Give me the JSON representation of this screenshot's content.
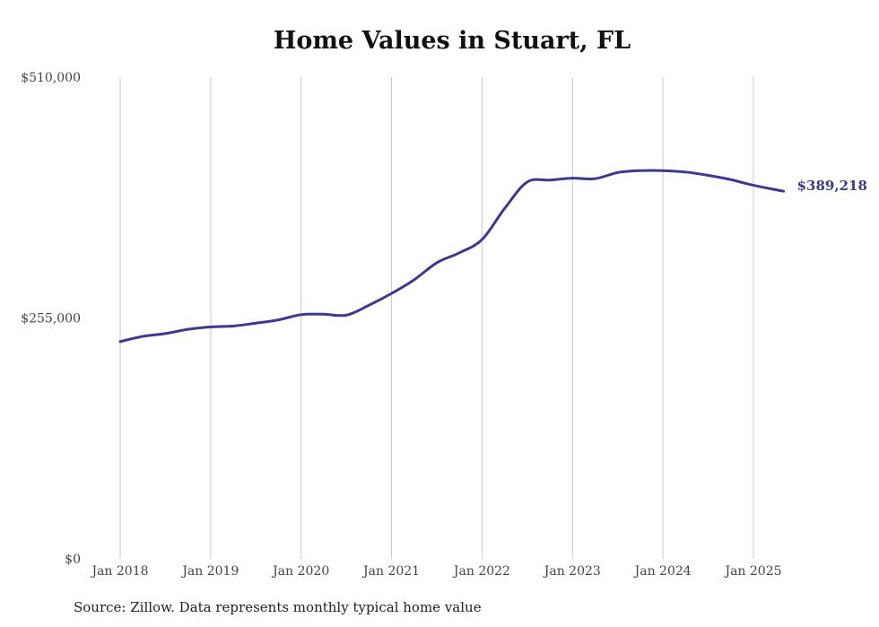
{
  "chart_data": {
    "type": "line",
    "title": "Home Values in Stuart, FL",
    "xlabel": "",
    "ylabel": "",
    "x_tick_labels": [
      "Jan 2018",
      "Jan 2019",
      "Jan 2020",
      "Jan 2021",
      "Jan 2022",
      "Jan 2023",
      "Jan 2024",
      "Jan 2025"
    ],
    "y_tick_labels": [
      "$0",
      "$255,000",
      "$510,000"
    ],
    "ylim": [
      0,
      510000
    ],
    "xlim": [
      "2018-01",
      "2025-05"
    ],
    "grid": "vertical",
    "color": "#3b3a8f",
    "series": [
      {
        "x": [
          "2018-01",
          "2018-04",
          "2018-07",
          "2018-10",
          "2019-01",
          "2019-04",
          "2019-07",
          "2019-10",
          "2020-01",
          "2020-04",
          "2020-07",
          "2020-10",
          "2021-01",
          "2021-04",
          "2021-07",
          "2021-10",
          "2022-01",
          "2022-04",
          "2022-07",
          "2022-10",
          "2023-01",
          "2023-04",
          "2023-07",
          "2023-10",
          "2024-01",
          "2024-04",
          "2024-07",
          "2024-10",
          "2025-01",
          "2025-05"
        ],
        "values": [
          230000,
          235500,
          238500,
          243000,
          245500,
          246500,
          249500,
          253000,
          258500,
          259000,
          258000,
          268500,
          281000,
          295500,
          313500,
          324000,
          338000,
          371000,
          399000,
          401000,
          403000,
          402500,
          409000,
          411000,
          411000,
          409500,
          406000,
          401500,
          395500,
          389218
        ]
      }
    ],
    "end_label": "$389,218"
  },
  "source_text": "Source: Zillow. Data represents monthly typical home value"
}
